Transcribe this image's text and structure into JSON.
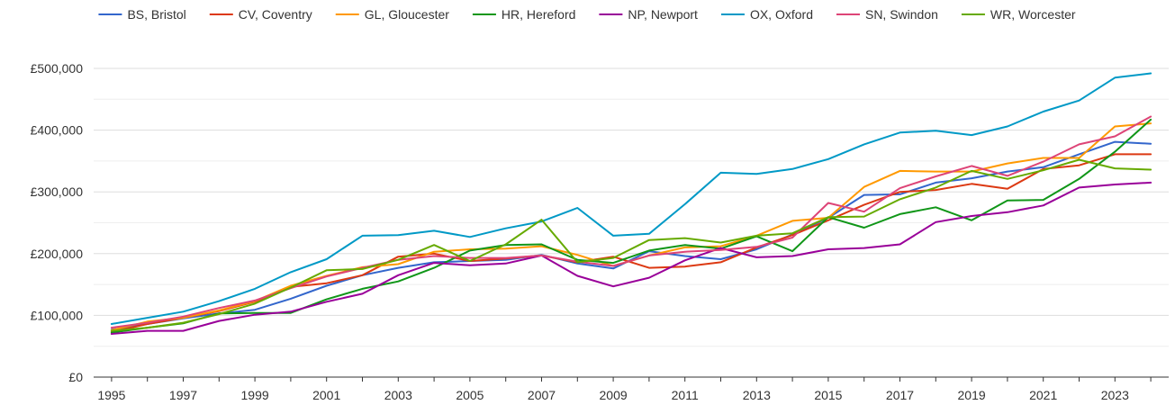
{
  "chart_data": {
    "type": "line",
    "title": "",
    "xlabel": "",
    "ylabel": "",
    "x": [
      1995,
      1996,
      1997,
      1998,
      1999,
      2000,
      2001,
      2002,
      2003,
      2004,
      2005,
      2006,
      2007,
      2008,
      2009,
      2010,
      2011,
      2012,
      2013,
      2014,
      2015,
      2016,
      2017,
      2018,
      2019,
      2020,
      2021,
      2022,
      2023,
      2024
    ],
    "xlim": [
      1994.5,
      2024.5
    ],
    "ylim": [
      0,
      500000
    ],
    "y_ticks": [
      0,
      100000,
      200000,
      300000,
      400000,
      500000
    ],
    "y_tick_labels": [
      "£0",
      "£100,000",
      "£200,000",
      "£300,000",
      "£400,000",
      "£500,000"
    ],
    "x_ticks": [
      1995,
      1997,
      1999,
      2001,
      2003,
      2005,
      2007,
      2009,
      2011,
      2013,
      2015,
      2017,
      2019,
      2021,
      2023
    ],
    "x_tick_labels": [
      "1995",
      "1997",
      "1999",
      "2001",
      "2003",
      "2005",
      "2007",
      "2009",
      "2011",
      "2013",
      "2015",
      "2017",
      "2019",
      "2021",
      "2023"
    ],
    "grid": true,
    "legend_position": "top",
    "series": [
      {
        "name": "BS, Bristol",
        "color": "#3366cc",
        "values": [
          77000,
          86000,
          95000,
          103000,
          109000,
          127000,
          148000,
          165000,
          177000,
          186000,
          188000,
          190000,
          198000,
          184000,
          176000,
          204000,
          196000,
          191000,
          207000,
          231000,
          258000,
          295000,
          296000,
          315000,
          322000,
          333000,
          340000,
          361000,
          381000,
          378000
        ]
      },
      {
        "name": "CV, Coventry",
        "color": "#dc3912",
        "values": [
          73000,
          86000,
          96000,
          107000,
          122000,
          146000,
          152000,
          165000,
          195000,
          200000,
          188000,
          192000,
          197000,
          186000,
          195000,
          177000,
          179000,
          186000,
          210000,
          230000,
          254000,
          279000,
          300000,
          303000,
          313000,
          305000,
          337000,
          343000,
          361000,
          361000
        ]
      },
      {
        "name": "GL, Gloucester",
        "color": "#ff9900",
        "values": [
          76000,
          90000,
          96000,
          108000,
          123000,
          148000,
          164000,
          178000,
          183000,
          203000,
          207000,
          208000,
          212000,
          198000,
          180000,
          197000,
          210000,
          212000,
          229000,
          253000,
          258000,
          308000,
          334000,
          333000,
          333000,
          346000,
          355000,
          355000,
          406000,
          411000
        ]
      },
      {
        "name": "HR, Hereford",
        "color": "#109618",
        "values": [
          72000,
          80000,
          87000,
          103000,
          104000,
          104000,
          126000,
          143000,
          155000,
          177000,
          205000,
          214000,
          215000,
          190000,
          185000,
          205000,
          214000,
          208000,
          228000,
          204000,
          259000,
          242000,
          264000,
          275000,
          254000,
          286000,
          287000,
          321000,
          365000,
          417000
        ]
      },
      {
        "name": "NP, Newport",
        "color": "#990099",
        "values": [
          70000,
          75000,
          75000,
          91000,
          101000,
          106000,
          122000,
          135000,
          165000,
          185000,
          181000,
          184000,
          197000,
          164000,
          147000,
          161000,
          189000,
          209000,
          194000,
          196000,
          207000,
          209000,
          215000,
          251000,
          261000,
          267000,
          278000,
          307000,
          312000,
          315000
        ]
      },
      {
        "name": "OX, Oxford",
        "color": "#0099c6",
        "values": [
          86000,
          96000,
          106000,
          123000,
          143000,
          170000,
          191000,
          229000,
          230000,
          237000,
          227000,
          241000,
          252000,
          274000,
          229000,
          232000,
          280000,
          331000,
          329000,
          337000,
          353000,
          377000,
          396000,
          399000,
          392000,
          406000,
          430000,
          448000,
          485000,
          492000
        ]
      },
      {
        "name": "SN, Swindon",
        "color": "#dd4477",
        "values": [
          80000,
          88000,
          98000,
          112000,
          124000,
          144000,
          163000,
          177000,
          190000,
          196000,
          193000,
          193000,
          197000,
          187000,
          180000,
          197000,
          203000,
          206000,
          211000,
          226000,
          282000,
          268000,
          306000,
          325000,
          342000,
          326000,
          349000,
          377000,
          390000,
          422000
        ]
      },
      {
        "name": "WR, Worcester",
        "color": "#66aa00",
        "values": [
          75000,
          80000,
          88000,
          102000,
          119000,
          145000,
          173000,
          175000,
          190000,
          214000,
          188000,
          215000,
          255000,
          186000,
          193000,
          222000,
          225000,
          218000,
          229000,
          233000,
          259000,
          260000,
          288000,
          307000,
          334000,
          321000,
          335000,
          352000,
          338000,
          336000
        ]
      }
    ]
  }
}
